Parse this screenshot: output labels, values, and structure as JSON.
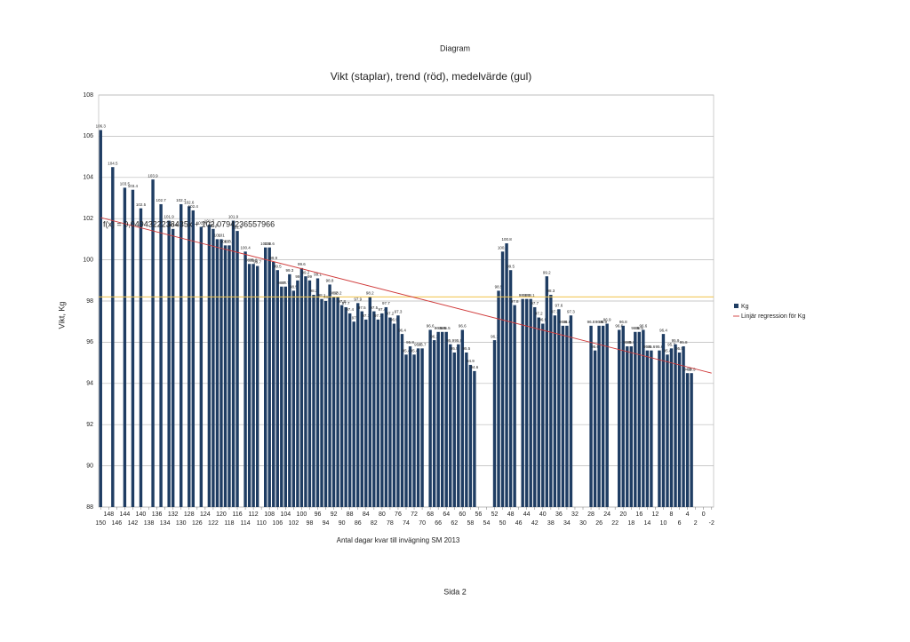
{
  "page_title": "Diagram",
  "footer": "Sida 2",
  "chart_data": {
    "type": "bar",
    "title": "Vikt (staplar), trend (röd), medelvärde (gul)",
    "x_label": "Antal dagar kvar till invägning SM 2013",
    "y_label": "Vikt, Kg",
    "annotation": "f(x) = 0,0494322238435x + 102,0794236557966",
    "xlim": [
      150.5,
      -2.5
    ],
    "ylim": [
      88,
      108
    ],
    "yticks": [
      88,
      90,
      92,
      94,
      96,
      98,
      100,
      102,
      104,
      106,
      108
    ],
    "xticks": [
      150,
      148,
      146,
      144,
      142,
      140,
      138,
      136,
      134,
      132,
      130,
      128,
      126,
      124,
      122,
      120,
      118,
      116,
      114,
      112,
      110,
      108,
      106,
      104,
      102,
      100,
      98,
      96,
      94,
      92,
      90,
      88,
      86,
      84,
      82,
      80,
      78,
      76,
      74,
      72,
      70,
      68,
      66,
      64,
      62,
      60,
      58,
      56,
      54,
      52,
      50,
      48,
      46,
      44,
      42,
      40,
      38,
      36,
      34,
      32,
      30,
      28,
      26,
      24,
      22,
      20,
      18,
      16,
      14,
      12,
      10,
      8,
      6,
      4,
      2,
      0,
      -2
    ],
    "grid": true,
    "legend": "right",
    "series": [
      {
        "name": "Kg",
        "color": "#1f3d63",
        "x": [
          150,
          147,
          144,
          142,
          140,
          137,
          135,
          133,
          132,
          130,
          128,
          127,
          125,
          123,
          122,
          121,
          120,
          119,
          118,
          117,
          116,
          114,
          113,
          112,
          111,
          109,
          108,
          107,
          106,
          105,
          104,
          103,
          102,
          101,
          100,
          99,
          98,
          97,
          96,
          95,
          94,
          93,
          92,
          91,
          90,
          89,
          88,
          87,
          86,
          85,
          84,
          83,
          82,
          81,
          80,
          79,
          78,
          77,
          76,
          75,
          74,
          73,
          72,
          71,
          70,
          68,
          67,
          66,
          65,
          64,
          63,
          62,
          61,
          60,
          59,
          58,
          57,
          52,
          51,
          50,
          49,
          48,
          47,
          45,
          44,
          43,
          42,
          41,
          40,
          39,
          38,
          37,
          36,
          35,
          34,
          33,
          28,
          27,
          26,
          25,
          24,
          21,
          20,
          19,
          18,
          17,
          16,
          15,
          14,
          13,
          11,
          10,
          9,
          8,
          7,
          6,
          5,
          4,
          3
        ],
        "values": [
          106.3,
          104.5,
          103.5,
          103.4,
          102.5,
          103.9,
          102.7,
          101.9,
          101.5,
          102.7,
          102.6,
          102.4,
          101.6,
          101.7,
          101.5,
          101,
          101,
          100.7,
          100.7,
          101.9,
          101.4,
          100.4,
          99.8,
          99.8,
          99.7,
          100.6,
          100.6,
          99.9,
          99.5,
          98.7,
          98.7,
          99.3,
          98.5,
          99,
          99.6,
          99.2,
          99,
          98.3,
          99.1,
          98.1,
          98,
          98.8,
          98.2,
          98.2,
          97.8,
          97.7,
          97.4,
          97,
          97.9,
          97.5,
          97.1,
          98.2,
          97.5,
          97.1,
          97.4,
          97.7,
          97.2,
          96.9,
          97.3,
          96.4,
          95.4,
          95.8,
          95.4,
          95.7,
          95.7,
          96.6,
          96.1,
          96.5,
          96.5,
          96.5,
          95.9,
          95.5,
          95.9,
          96.6,
          95.5,
          94.9,
          94.6,
          96.1,
          98.5,
          100.4,
          100.8,
          99.5,
          97.8,
          98.1,
          98.1,
          98.1,
          97.7,
          97.2,
          96.9,
          99.2,
          98.3,
          97.3,
          97.6,
          96.8,
          96.8,
          97.3,
          96.8,
          95.6,
          96.8,
          96.8,
          96.9,
          96.6,
          96.8,
          95.8,
          95.8,
          96.5,
          96.5,
          96.6,
          95.6,
          95.6,
          95.6,
          96.4,
          95.4,
          95.7,
          95.9,
          95.5,
          95.8,
          94.5,
          94.5
        ]
      }
    ],
    "trend": {
      "name": "Linjär regression för Kg",
      "color": "#d03a3a",
      "x": [
        150,
        -2
      ],
      "values": [
        102.05,
        94.5
      ]
    },
    "mean_line": {
      "value": 98.2,
      "color": "#f0c34a"
    }
  }
}
